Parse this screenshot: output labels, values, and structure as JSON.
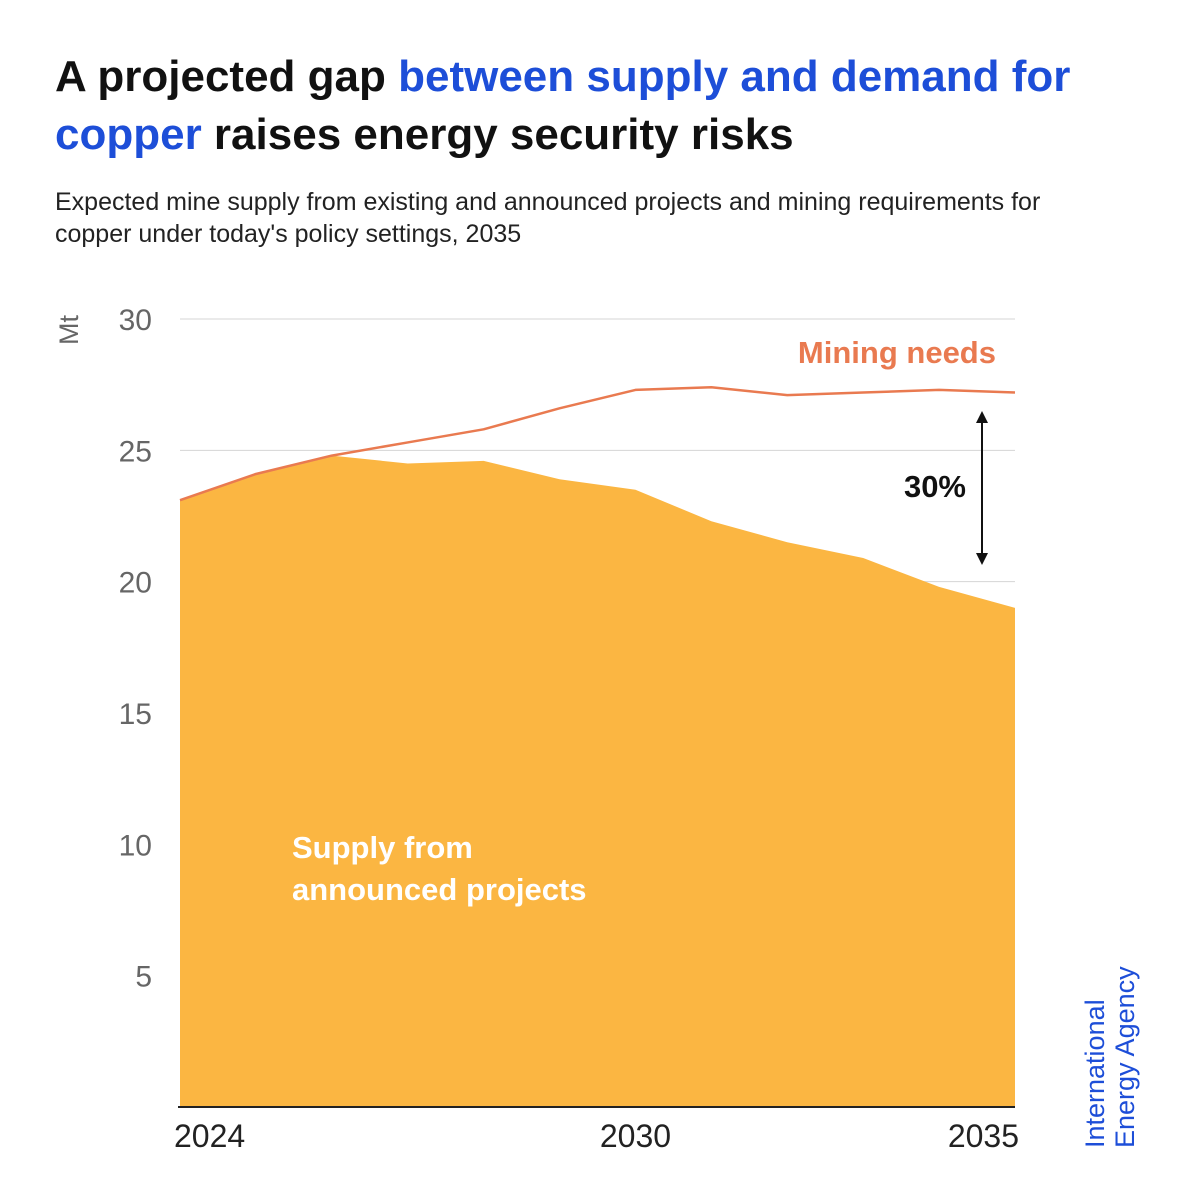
{
  "header": {
    "title_part1": "A projected gap ",
    "title_highlight": "between supply and demand for copper",
    "title_part2": " raises energy security risks",
    "subtitle": "Expected mine supply from existing and announced projects and mining requirements for copper under today's policy settings, 2035"
  },
  "brand": {
    "line1": "International",
    "line2": "Energy Agency"
  },
  "colors": {
    "supply_fill": "#fbb642",
    "needs_line": "#e97a50",
    "accent": "#1d4ed8",
    "grid": "#d4d4d4",
    "axis_text": "#666666"
  },
  "chart_data": {
    "type": "area",
    "title": "A projected gap between supply and demand for copper raises energy security risks",
    "ylabel": "Mt",
    "xlabel": "",
    "x": [
      2024,
      2025,
      2026,
      2027,
      2028,
      2029,
      2030,
      2031,
      2032,
      2033,
      2034,
      2035
    ],
    "x_ticks": [
      "2024",
      "2030",
      "2035"
    ],
    "y_ticks": [
      5,
      10,
      15,
      20,
      25,
      30
    ],
    "ylim": [
      0,
      30
    ],
    "xlim": [
      2024,
      2035
    ],
    "grid": true,
    "series": [
      {
        "name": "Mining needs",
        "kind": "line",
        "values": [
          23.1,
          24.1,
          24.8,
          25.3,
          25.8,
          26.6,
          27.3,
          27.4,
          27.1,
          27.2,
          27.3,
          27.2
        ]
      },
      {
        "name": "Supply from announced projects",
        "kind": "area",
        "values": [
          23.1,
          24.1,
          24.8,
          24.5,
          24.6,
          23.9,
          23.5,
          22.3,
          21.5,
          20.9,
          19.8,
          19.0
        ]
      }
    ],
    "annotations": {
      "gap_label": "30%",
      "needs_label": "Mining needs",
      "supply_label_line1": "Supply from",
      "supply_label_line2": "announced projects"
    }
  }
}
